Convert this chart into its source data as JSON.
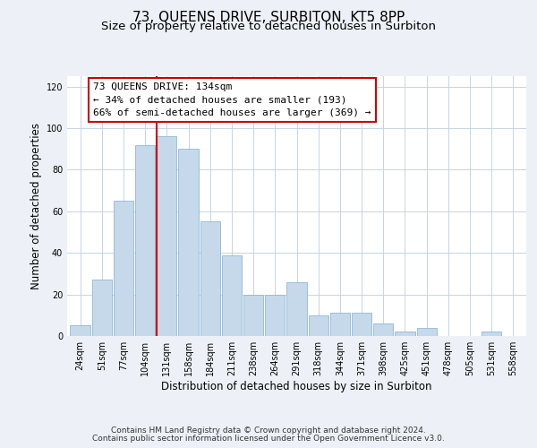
{
  "title": "73, QUEENS DRIVE, SURBITON, KT5 8PP",
  "subtitle": "Size of property relative to detached houses in Surbiton",
  "xlabel": "Distribution of detached houses by size in Surbiton",
  "ylabel": "Number of detached properties",
  "bar_labels": [
    "24sqm",
    "51sqm",
    "77sqm",
    "104sqm",
    "131sqm",
    "158sqm",
    "184sqm",
    "211sqm",
    "238sqm",
    "264sqm",
    "291sqm",
    "318sqm",
    "344sqm",
    "371sqm",
    "398sqm",
    "425sqm",
    "451sqm",
    "478sqm",
    "505sqm",
    "531sqm",
    "558sqm"
  ],
  "bar_values": [
    5,
    27,
    65,
    92,
    96,
    90,
    55,
    39,
    20,
    20,
    26,
    10,
    11,
    11,
    6,
    2,
    4,
    0,
    0,
    2,
    0
  ],
  "bar_color": "#c5d9ea",
  "bar_edge_color": "#8fb8d8",
  "highlight_bar_index": 4,
  "highlight_color": "#cc0000",
  "annotation_box_text": "73 QUEENS DRIVE: 134sqm\n← 34% of detached houses are smaller (193)\n66% of semi-detached houses are larger (369) →",
  "ylim": [
    0,
    125
  ],
  "yticks": [
    0,
    20,
    40,
    60,
    80,
    100,
    120
  ],
  "background_color": "#edf1f7",
  "plot_bg_color": "#ffffff",
  "grid_color": "#c8d4e0",
  "footer_line1": "Contains HM Land Registry data © Crown copyright and database right 2024.",
  "footer_line2": "Contains public sector information licensed under the Open Government Licence v3.0.",
  "title_fontsize": 11,
  "subtitle_fontsize": 9.5,
  "axis_label_fontsize": 8.5,
  "tick_fontsize": 7,
  "annotation_fontsize": 8,
  "footer_fontsize": 6.5
}
